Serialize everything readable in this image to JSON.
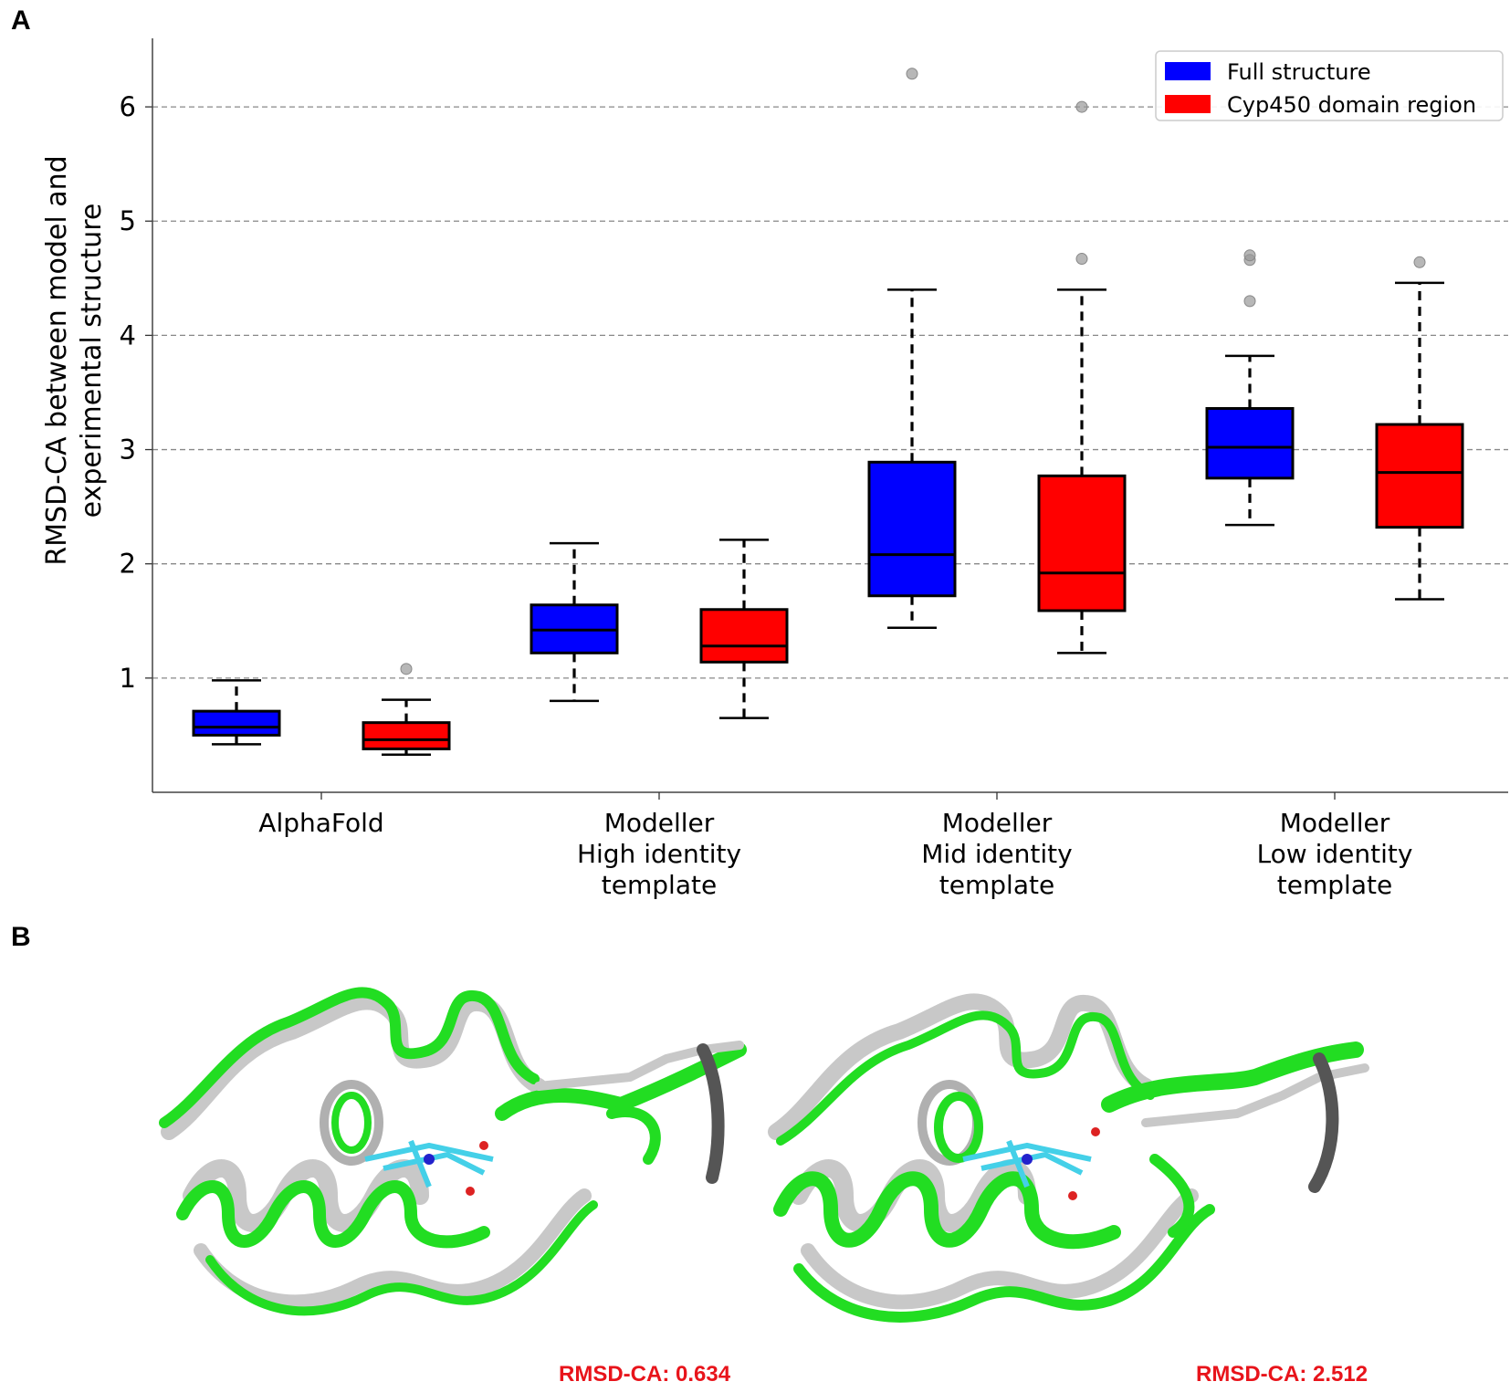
{
  "panels": {
    "a": "A",
    "b": "B"
  },
  "chart_data": {
    "type": "box",
    "ylabel_lines": [
      "RMSD-CA between model and",
      "experimental structure"
    ],
    "xlabel": "",
    "ylim": [
      0.0,
      6.6
    ],
    "yticks": [
      1,
      2,
      3,
      4,
      5,
      6
    ],
    "grid": "horizontal-dashed",
    "legend_position": "top-right",
    "categories": [
      [
        "AlphaFold"
      ],
      [
        "Modeller",
        "High identity",
        "template"
      ],
      [
        "Modeller",
        "Mid identity",
        "template"
      ],
      [
        "Modeller",
        "Low identity",
        "template"
      ]
    ],
    "series": [
      {
        "name": "Full structure",
        "color": "#0000ff",
        "boxes": [
          {
            "whislo": 0.42,
            "q1": 0.5,
            "med": 0.57,
            "q3": 0.71,
            "whishi": 0.98,
            "fliers": []
          },
          {
            "whislo": 0.8,
            "q1": 1.22,
            "med": 1.42,
            "q3": 1.64,
            "whishi": 2.18,
            "fliers": []
          },
          {
            "whislo": 1.44,
            "q1": 1.72,
            "med": 2.08,
            "q3": 2.89,
            "whishi": 4.4,
            "fliers": [
              6.29
            ]
          },
          {
            "whislo": 2.34,
            "q1": 2.75,
            "med": 3.02,
            "q3": 3.36,
            "whishi": 3.82,
            "fliers": [
              4.3,
              4.66,
              4.7
            ]
          }
        ]
      },
      {
        "name": "Cyp450 domain region",
        "color": "#ff0000",
        "boxes": [
          {
            "whislo": 0.33,
            "q1": 0.38,
            "med": 0.46,
            "q3": 0.61,
            "whishi": 0.81,
            "fliers": [
              1.08
            ]
          },
          {
            "whislo": 0.65,
            "q1": 1.14,
            "med": 1.28,
            "q3": 1.6,
            "whishi": 2.21,
            "fliers": []
          },
          {
            "whislo": 1.22,
            "q1": 1.59,
            "med": 1.92,
            "q3": 2.77,
            "whishi": 4.4,
            "fliers": [
              4.67,
              6.0
            ]
          },
          {
            "whislo": 1.69,
            "q1": 2.32,
            "med": 2.8,
            "q3": 3.22,
            "whishi": 4.46,
            "fliers": [
              4.64
            ]
          }
        ]
      }
    ]
  },
  "structures": [
    {
      "name": "alphafold-structure",
      "rmsd_label": "RMSD-CA: 0.634"
    },
    {
      "name": "modeller-low-identity-structure",
      "rmsd_label": "RMSD-CA: 2.512"
    }
  ],
  "colors": {
    "reference_ribbon": "#c8c8c8",
    "model_ribbon": "#22dd22",
    "heme": "#44d0e8"
  }
}
